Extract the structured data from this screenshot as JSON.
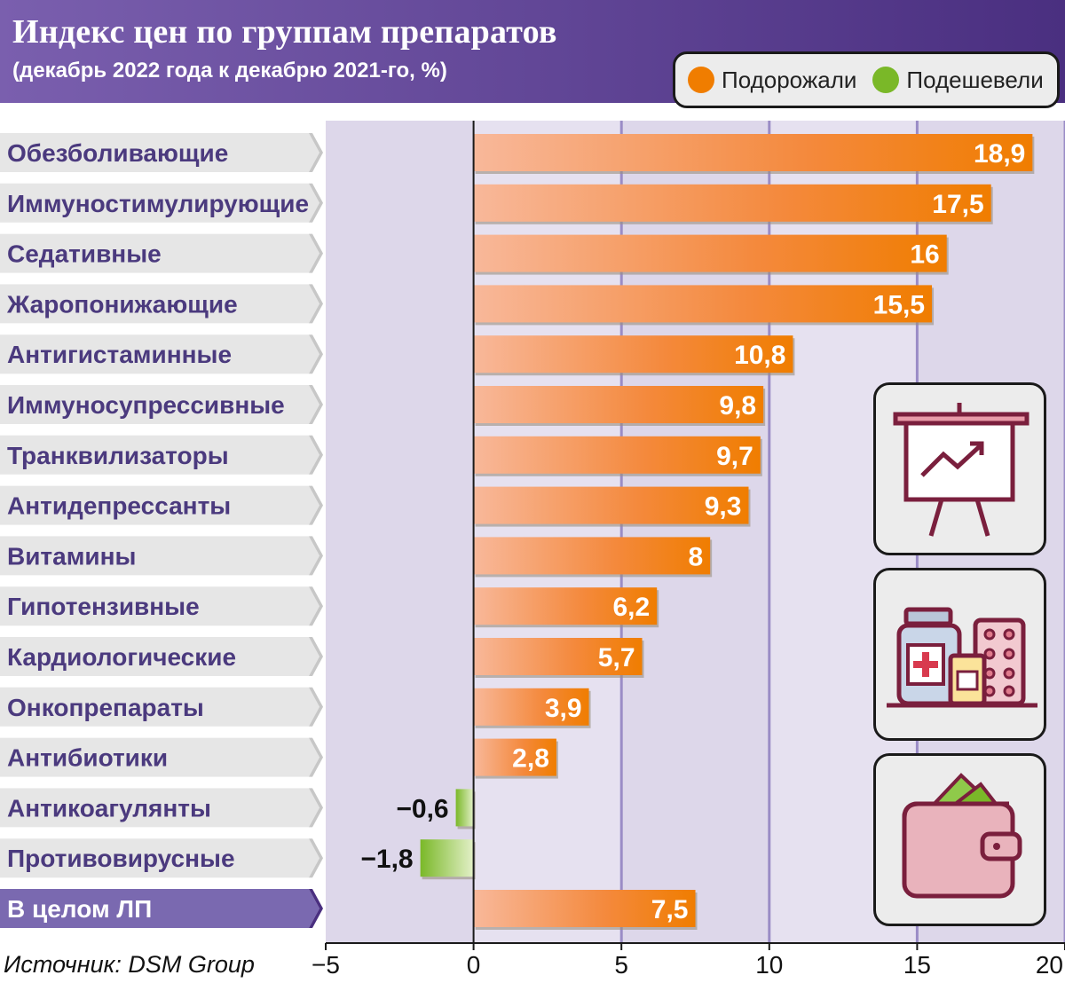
{
  "header": {
    "title": "Индекс цен по группам препаратов",
    "subtitle": "(декабрь 2022 года к декабрю 2021-го, %)"
  },
  "legend": {
    "up_label": "Подорожали",
    "down_label": "Подешевели"
  },
  "source": "Источник: DSM Group",
  "colors": {
    "header": "#5b3f91",
    "up": "#f07d00",
    "down": "#7ab828",
    "total_label_bg": "#7a69b0",
    "plot_bg": "#ddd7ea"
  },
  "icons": [
    "presentation-chart-icon",
    "medicine-bottles-icon",
    "wallet-icon"
  ],
  "chart_data": {
    "type": "bar",
    "orientation": "horizontal",
    "title": "Индекс цен по группам препаратов",
    "subtitle": "(декабрь 2022 года к декабрю 2021-го, %)",
    "categories": [
      "Обезболивающие",
      "Иммуностимулирующие",
      "Седативные",
      "Жаропонижающие",
      "Антигистаминные",
      "Иммуносупрессивные",
      "Транквилизаторы",
      "Антидепрессанты",
      "Витамины",
      "Гипотензивные",
      "Кардиологические",
      "Онкопрепараты",
      "Антибиотики",
      "Антикоагулянты",
      "Противовирусные",
      "В целом ЛП"
    ],
    "values": [
      18.9,
      17.5,
      16,
      15.5,
      10.8,
      9.8,
      9.7,
      9.3,
      8,
      6.2,
      5.7,
      3.9,
      2.8,
      -0.6,
      -1.8,
      7.5
    ],
    "value_labels": [
      "18,9",
      "17,5",
      "16",
      "15,5",
      "10,8",
      "9,8",
      "9,7",
      "9,3",
      "8",
      "6,2",
      "5,7",
      "3,9",
      "2,8",
      "−0,6",
      "−1,8",
      "7,5"
    ],
    "xlim": [
      -5,
      20
    ],
    "xticks": [
      -5,
      0,
      5,
      10,
      15,
      20
    ],
    "xtick_labels": [
      "−5",
      "0",
      "5",
      "10",
      "15",
      "20"
    ],
    "xlabel": "",
    "ylabel": "",
    "legend": [
      "Подорожали",
      "Подешевели"
    ],
    "legend_position": "top-right",
    "grid": true
  }
}
